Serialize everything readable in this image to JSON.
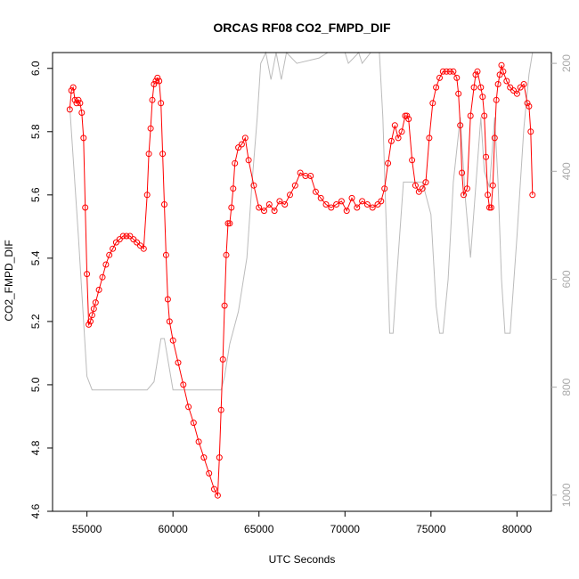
{
  "chart_data": {
    "type": "line",
    "title": "ORCAS RF08 CO2_FMPD_DIF",
    "xlabel": "UTC Seconds",
    "ylabel": "CO2_FMPD_DIF",
    "xlim": [
      53000,
      82000
    ],
    "ylim": [
      4.6,
      6.05
    ],
    "y2lim": [
      1030,
      180
    ],
    "x_ticks": [
      55000,
      60000,
      65000,
      70000,
      75000,
      80000
    ],
    "x_tick_labels": [
      "55000",
      "60000",
      "65000",
      "70000",
      "75000",
      "80000"
    ],
    "y_ticks": [
      4.6,
      4.8,
      5.0,
      5.2,
      5.4,
      5.6,
      5.8,
      6.0
    ],
    "y_tick_labels": [
      "4.6",
      "4.8",
      "5.0",
      "5.2",
      "5.4",
      "5.6",
      "5.8",
      "6.0"
    ],
    "y2_ticks": [
      200,
      400,
      600,
      800,
      1000
    ],
    "y2_tick_labels": [
      "200",
      "400",
      "600",
      "800",
      "1000"
    ],
    "grid": false,
    "colors": {
      "series": "#ff0000",
      "secondary": "#bbbbbb",
      "axis": "#000000",
      "axis_right": "#aaaaaa"
    },
    "series": [
      {
        "marker": "open-circle",
        "x": [
          54000,
          54100,
          54200,
          54300,
          54400,
          54500,
          54600,
          54700,
          54800,
          54900,
          55000,
          55100,
          55200,
          55300,
          55400,
          55500,
          55700,
          55900,
          56100,
          56300,
          56500,
          56700,
          56900,
          57100,
          57300,
          57500,
          57700,
          57900,
          58100,
          58300,
          58500,
          58600,
          58700,
          58800,
          58900,
          59000,
          59100,
          59200,
          59300,
          59400,
          59500,
          59600,
          59700,
          59800,
          60000,
          60300,
          60600,
          60900,
          61200,
          61500,
          61800,
          62100,
          62400,
          62600,
          62700,
          62800,
          62900,
          63000,
          63100,
          63200,
          63300,
          63400,
          63500,
          63600,
          63800,
          64000,
          64200,
          64400,
          64700,
          65000,
          65300,
          65600,
          65900,
          66200,
          66500,
          66800,
          67100,
          67400,
          67700,
          68000,
          68300,
          68600,
          68900,
          69200,
          69500,
          69800,
          70100,
          70400,
          70700,
          71000,
          71300,
          71600,
          71900,
          72100,
          72300,
          72500,
          72700,
          72900,
          73100,
          73300,
          73500,
          73600,
          73700,
          73900,
          74100,
          74300,
          74500,
          74700,
          74900,
          75100,
          75300,
          75500,
          75700,
          75900,
          76100,
          76300,
          76500,
          76600,
          76700,
          76800,
          76900,
          77100,
          77300,
          77500,
          77600,
          77700,
          77900,
          78000,
          78100,
          78200,
          78300,
          78400,
          78500,
          78600,
          78700,
          78800,
          78900,
          79000,
          79100,
          79200,
          79400,
          79600,
          79800,
          80000,
          80200,
          80400,
          80600,
          80700,
          80800,
          80900
        ],
        "values": [
          5.87,
          5.93,
          5.94,
          5.9,
          5.89,
          5.9,
          5.89,
          5.86,
          5.78,
          5.56,
          5.35,
          5.19,
          5.2,
          5.22,
          5.24,
          5.26,
          5.3,
          5.34,
          5.38,
          5.41,
          5.43,
          5.45,
          5.46,
          5.47,
          5.47,
          5.47,
          5.46,
          5.45,
          5.44,
          5.43,
          5.6,
          5.73,
          5.81,
          5.9,
          5.95,
          5.96,
          5.97,
          5.96,
          5.89,
          5.73,
          5.57,
          5.41,
          5.27,
          5.2,
          5.14,
          5.07,
          5.0,
          4.93,
          4.88,
          4.82,
          4.77,
          4.72,
          4.67,
          4.65,
          4.77,
          4.92,
          5.08,
          5.25,
          5.41,
          5.51,
          5.51,
          5.56,
          5.62,
          5.7,
          5.75,
          5.76,
          5.78,
          5.71,
          5.63,
          5.56,
          5.55,
          5.57,
          5.55,
          5.58,
          5.57,
          5.6,
          5.63,
          5.67,
          5.66,
          5.66,
          5.61,
          5.59,
          5.57,
          5.56,
          5.57,
          5.58,
          5.55,
          5.59,
          5.56,
          5.58,
          5.57,
          5.56,
          5.57,
          5.58,
          5.62,
          5.7,
          5.77,
          5.82,
          5.78,
          5.8,
          5.85,
          5.85,
          5.84,
          5.71,
          5.63,
          5.61,
          5.62,
          5.64,
          5.78,
          5.89,
          5.94,
          5.97,
          5.99,
          5.99,
          5.99,
          5.99,
          5.97,
          5.92,
          5.82,
          5.67,
          5.6,
          5.62,
          5.85,
          5.94,
          5.98,
          5.99,
          5.94,
          5.91,
          5.85,
          5.72,
          5.6,
          5.56,
          5.56,
          5.63,
          5.78,
          5.9,
          5.95,
          5.98,
          6.01,
          5.99,
          5.96,
          5.94,
          5.93,
          5.92,
          5.94,
          5.95,
          5.89,
          5.88,
          5.8,
          5.6
        ]
      }
    ],
    "secondary_series": {
      "axis": "right",
      "x": [
        54000,
        54500,
        55000,
        55300,
        56000,
        58500,
        58900,
        59300,
        59500,
        60000,
        62800,
        63000,
        63300,
        63800,
        64300,
        64600,
        64900,
        65100,
        65400,
        65700,
        66000,
        66300,
        66600,
        67200,
        68500,
        69000,
        69500,
        70000,
        70200,
        70500,
        70800,
        71000,
        71500,
        72000,
        72200,
        72400,
        72600,
        72800,
        73000,
        73400,
        74500,
        75000,
        75300,
        75500,
        75700,
        76000,
        76300,
        76700,
        77000,
        77300,
        77600,
        77900,
        78100,
        78400,
        78700,
        78900,
        79100,
        79300,
        79600,
        80000,
        80400,
        80700,
        80900
      ],
      "values": [
        280,
        520,
        780,
        805,
        805,
        805,
        790,
        710,
        710,
        805,
        805,
        780,
        720,
        660,
        560,
        420,
        300,
        200,
        160,
        230,
        160,
        230,
        160,
        200,
        190,
        160,
        180,
        155,
        200,
        190,
        160,
        200,
        160,
        180,
        300,
        500,
        700,
        700,
        600,
        420,
        420,
        480,
        650,
        700,
        700,
        600,
        420,
        300,
        450,
        560,
        430,
        300,
        400,
        430,
        300,
        420,
        600,
        700,
        700,
        520,
        320,
        220,
        180
      ]
    }
  }
}
